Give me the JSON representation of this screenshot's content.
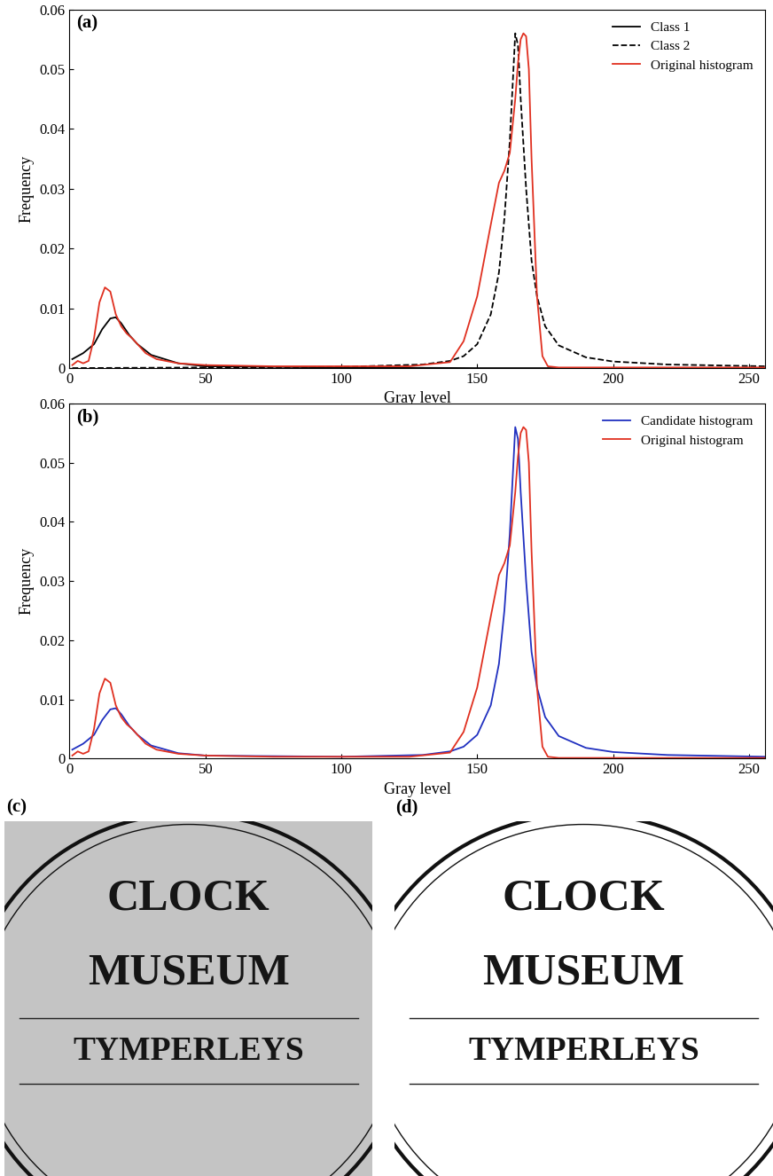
{
  "chart_data": [
    {
      "type": "line",
      "title": "(a)",
      "x_label": "Gray level",
      "y_label": "Frequency",
      "xlim": [
        0,
        256
      ],
      "xticks": [
        0,
        50,
        100,
        150,
        200,
        250
      ],
      "ylim": [
        0,
        0.06
      ],
      "yticks": [
        0,
        0.01,
        0.02,
        0.03,
        0.04,
        0.05,
        0.06
      ],
      "legend": "upper right",
      "series": [
        {
          "name": "Class 1",
          "color": "#000000",
          "line_style": "solid",
          "x": [
            1,
            5,
            9,
            12,
            15,
            17,
            19,
            22,
            25,
            30,
            40,
            50,
            100,
            150,
            256
          ],
          "values": [
            0.0015,
            0.0025,
            0.004,
            0.0065,
            0.0083,
            0.0085,
            0.0075,
            0.0055,
            0.004,
            0.0022,
            0.0008,
            0.0003,
            0.0001,
            0.0,
            0.0
          ]
        },
        {
          "name": "Class 2",
          "color": "#000000",
          "line_style": "dashed",
          "x": [
            1,
            100,
            130,
            140,
            145,
            150,
            155,
            158,
            160,
            162,
            164,
            165,
            166,
            168,
            170,
            172,
            175,
            180,
            190,
            200,
            220,
            256
          ],
          "values": [
            0.0,
            0.0002,
            0.0006,
            0.0012,
            0.002,
            0.004,
            0.009,
            0.016,
            0.025,
            0.038,
            0.056,
            0.054,
            0.045,
            0.03,
            0.018,
            0.012,
            0.007,
            0.0038,
            0.0018,
            0.0011,
            0.0006,
            0.0003
          ]
        },
        {
          "name": "Original histogram",
          "color": "#e03020",
          "line_style": "solid",
          "x": [
            1,
            3,
            5,
            7,
            9,
            11,
            13,
            15,
            17,
            19,
            21,
            23,
            25,
            28,
            32,
            40,
            50,
            75,
            100,
            125,
            140,
            145,
            150,
            155,
            158,
            160,
            162,
            164,
            165,
            166,
            167,
            168,
            169,
            170,
            172,
            174,
            176,
            180,
            200,
            256
          ],
          "values": [
            0.0005,
            0.0012,
            0.0008,
            0.0012,
            0.005,
            0.011,
            0.0135,
            0.0128,
            0.009,
            0.007,
            0.0058,
            0.005,
            0.004,
            0.0025,
            0.0015,
            0.0008,
            0.0005,
            0.0003,
            0.0003,
            0.0003,
            0.001,
            0.0045,
            0.012,
            0.024,
            0.031,
            0.033,
            0.036,
            0.045,
            0.051,
            0.055,
            0.056,
            0.0555,
            0.05,
            0.035,
            0.012,
            0.002,
            0.0003,
            0.0001,
            0.0001,
            0.0001
          ]
        }
      ]
    },
    {
      "type": "line",
      "title": "(b)",
      "x_label": "Gray level",
      "y_label": "Frequency",
      "xlim": [
        0,
        256
      ],
      "xticks": [
        0,
        50,
        100,
        150,
        200,
        250
      ],
      "ylim": [
        0,
        0.06
      ],
      "yticks": [
        0,
        0.01,
        0.02,
        0.03,
        0.04,
        0.05,
        0.06
      ],
      "legend": "upper right",
      "series": [
        {
          "name": "Candidate histogram",
          "color": "#2030c0",
          "line_style": "solid",
          "x": [
            1,
            5,
            9,
            12,
            15,
            17,
            19,
            22,
            25,
            30,
            40,
            50,
            100,
            130,
            140,
            145,
            150,
            155,
            158,
            160,
            162,
            164,
            165,
            166,
            168,
            170,
            172,
            175,
            180,
            190,
            200,
            220,
            256
          ],
          "values": [
            0.0015,
            0.0025,
            0.004,
            0.0065,
            0.0083,
            0.0085,
            0.0075,
            0.0055,
            0.004,
            0.0022,
            0.0009,
            0.0005,
            0.0003,
            0.0006,
            0.0012,
            0.002,
            0.004,
            0.009,
            0.016,
            0.025,
            0.038,
            0.056,
            0.054,
            0.045,
            0.03,
            0.018,
            0.012,
            0.007,
            0.0038,
            0.0018,
            0.0011,
            0.0006,
            0.0003
          ]
        },
        {
          "name": "Original histogram",
          "color": "#e03020",
          "line_style": "solid",
          "x": [
            1,
            3,
            5,
            7,
            9,
            11,
            13,
            15,
            17,
            19,
            21,
            23,
            25,
            28,
            32,
            40,
            50,
            75,
            100,
            125,
            140,
            145,
            150,
            155,
            158,
            160,
            162,
            164,
            165,
            166,
            167,
            168,
            169,
            170,
            172,
            174,
            176,
            180,
            200,
            256
          ],
          "values": [
            0.0005,
            0.0012,
            0.0008,
            0.0012,
            0.005,
            0.011,
            0.0135,
            0.0128,
            0.009,
            0.007,
            0.0058,
            0.005,
            0.004,
            0.0025,
            0.0015,
            0.0008,
            0.0005,
            0.0003,
            0.0003,
            0.0003,
            0.001,
            0.0045,
            0.012,
            0.024,
            0.031,
            0.033,
            0.036,
            0.045,
            0.051,
            0.055,
            0.056,
            0.0555,
            0.05,
            0.035,
            0.012,
            0.002,
            0.0003,
            0.0001,
            0.0001,
            0.0001
          ]
        }
      ]
    }
  ],
  "images": [
    {
      "label": "(c)",
      "background": "#c4c4c4",
      "text": [
        "CLOCK",
        "MUSEUM",
        "TYMPERLEYS"
      ]
    },
    {
      "label": "(d)",
      "background": "#ffffff",
      "text": [
        "CLOCK",
        "MUSEUM",
        "TYMPERLEYS"
      ]
    }
  ]
}
